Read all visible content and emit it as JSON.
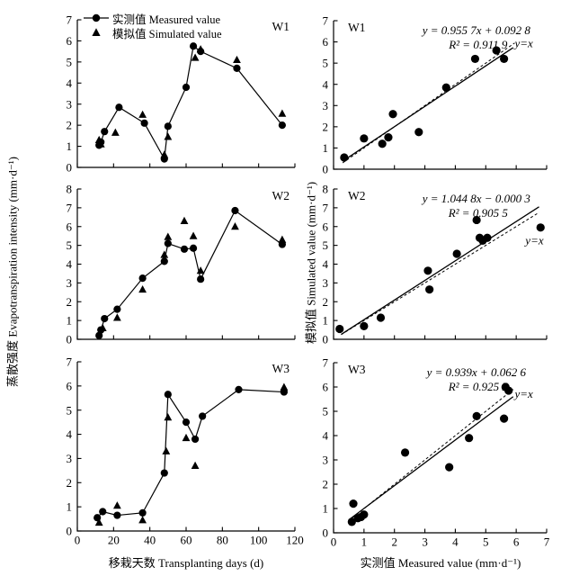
{
  "figure": {
    "background": "#ffffff",
    "ink_color": "#000000",
    "legend": {
      "measured_label": "实测值 Measured value",
      "simulated_label": "模拟值 Simulated value"
    },
    "axis_captions": {
      "left_x": "移栽天数 Transplanting days (d)",
      "left_y": "蒸散强度 Evapotranspiration intensity (mm·d⁻¹)",
      "right_x": "实测值 Measured value (mm·d⁻¹)",
      "right_y": "模拟值 Simulated value (mm·d⁻¹)"
    }
  },
  "chart_data": [
    {
      "panel": "W1",
      "type": "line",
      "xlim": [
        0,
        120
      ],
      "ylim": [
        0,
        7
      ],
      "xticks": [
        0,
        20,
        40,
        60,
        80,
        100,
        120
      ],
      "yticks": [
        0,
        1,
        2,
        3,
        4,
        5,
        6,
        7
      ],
      "show_xtick_labels": false,
      "series": [
        {
          "name": "measured",
          "marker": "circle",
          "connect": true,
          "points": [
            [
              12,
              1.05
            ],
            [
              13,
              1.2
            ],
            [
              15,
              1.7
            ],
            [
              23,
              2.85
            ],
            [
              37,
              2.1
            ],
            [
              48,
              0.4
            ],
            [
              50,
              1.95
            ],
            [
              60,
              3.8
            ],
            [
              64,
              5.75
            ],
            [
              68,
              5.5
            ],
            [
              88,
              4.7
            ],
            [
              113,
              2.0
            ]
          ]
        },
        {
          "name": "simulated",
          "marker": "triangle",
          "connect": false,
          "points": [
            [
              12,
              1.3
            ],
            [
              13,
              1.1
            ],
            [
              21,
              1.65
            ],
            [
              36,
              2.5
            ],
            [
              48,
              0.6
            ],
            [
              50,
              1.45
            ],
            [
              65,
              5.2
            ],
            [
              68,
              5.6
            ],
            [
              88,
              5.1
            ],
            [
              113,
              2.55
            ]
          ]
        }
      ]
    },
    {
      "panel": "W1",
      "type": "scatter",
      "xlim": [
        0,
        7
      ],
      "ylim": [
        0,
        7
      ],
      "xticks": [
        0,
        1,
        2,
        3,
        4,
        5,
        6,
        7
      ],
      "yticks": [
        0,
        1,
        2,
        3,
        4,
        5,
        6,
        7
      ],
      "show_xtick_labels": false,
      "points": [
        [
          0.35,
          0.55
        ],
        [
          1.0,
          1.45
        ],
        [
          1.6,
          1.2
        ],
        [
          1.8,
          1.5
        ],
        [
          1.95,
          2.6
        ],
        [
          2.8,
          1.75
        ],
        [
          3.7,
          3.85
        ],
        [
          4.65,
          5.2
        ],
        [
          5.35,
          5.6
        ],
        [
          5.6,
          5.2
        ]
      ],
      "fit": {
        "slope": 0.9557,
        "intercept": 0.0928,
        "x_range": [
          0.3,
          5.9
        ],
        "equation": "y = 0.955 7x + 0.092 8",
        "r2": "R² = 0.911 9"
      },
      "identity": {
        "label": "y=x",
        "x_range": [
          0.3,
          5.95
        ],
        "label_pos": [
          5.95,
          5.75
        ]
      }
    },
    {
      "panel": "W2",
      "type": "line",
      "xlim": [
        0,
        120
      ],
      "ylim": [
        0,
        8
      ],
      "xticks": [
        0,
        20,
        40,
        60,
        80,
        100,
        120
      ],
      "yticks": [
        0,
        1,
        2,
        3,
        4,
        5,
        6,
        7,
        8
      ],
      "show_xtick_labels": false,
      "series": [
        {
          "name": "measured",
          "marker": "circle",
          "connect": true,
          "points": [
            [
              12,
              0.2
            ],
            [
              13,
              0.5
            ],
            [
              15,
              1.1
            ],
            [
              22,
              1.6
            ],
            [
              36,
              3.25
            ],
            [
              48,
              4.15
            ],
            [
              50,
              5.1
            ],
            [
              59,
              4.8
            ],
            [
              64,
              4.85
            ],
            [
              68,
              3.2
            ],
            [
              87,
              6.85
            ],
            [
              113,
              5.05
            ]
          ]
        },
        {
          "name": "simulated",
          "marker": "triangle",
          "connect": false,
          "points": [
            [
              14,
              0.6
            ],
            [
              22,
              1.15
            ],
            [
              36,
              2.65
            ],
            [
              48,
              4.5
            ],
            [
              50,
              5.45
            ],
            [
              59,
              6.3
            ],
            [
              64,
              5.5
            ],
            [
              68,
              3.65
            ],
            [
              87,
              6.0
            ],
            [
              113,
              5.3
            ]
          ]
        }
      ]
    },
    {
      "panel": "W2",
      "type": "scatter",
      "xlim": [
        0,
        7
      ],
      "ylim": [
        0,
        8
      ],
      "xticks": [
        0,
        1,
        2,
        3,
        4,
        5,
        6,
        7
      ],
      "yticks": [
        0,
        1,
        2,
        3,
        4,
        5,
        6,
        7,
        8
      ],
      "show_xtick_labels": false,
      "points": [
        [
          0.2,
          0.55
        ],
        [
          1.0,
          0.7
        ],
        [
          1.55,
          1.15
        ],
        [
          3.1,
          3.65
        ],
        [
          3.15,
          2.65
        ],
        [
          4.05,
          4.55
        ],
        [
          4.7,
          6.35
        ],
        [
          4.8,
          5.4
        ],
        [
          4.9,
          5.25
        ],
        [
          5.05,
          5.4
        ],
        [
          6.8,
          5.95
        ]
      ],
      "fit": {
        "slope": 1.0448,
        "intercept": -0.0003,
        "x_range": [
          0.25,
          6.75
        ],
        "equation": "y = 1.044 8x − 0.000 3",
        "r2": "R² = 0.905 5"
      },
      "identity": {
        "label": "y=x",
        "x_range": [
          0.25,
          6.75
        ],
        "label_pos": [
          6.3,
          5.05
        ]
      }
    },
    {
      "panel": "W3",
      "type": "line",
      "xlim": [
        0,
        120
      ],
      "ylim": [
        0,
        7
      ],
      "xticks": [
        0,
        20,
        40,
        60,
        80,
        100,
        120
      ],
      "yticks": [
        0,
        1,
        2,
        3,
        4,
        5,
        6,
        7
      ],
      "show_xtick_labels": true,
      "series": [
        {
          "name": "measured",
          "marker": "circle",
          "connect": true,
          "points": [
            [
              11,
              0.55
            ],
            [
              14,
              0.8
            ],
            [
              22,
              0.65
            ],
            [
              36,
              0.75
            ],
            [
              48,
              2.4
            ],
            [
              50,
              5.65
            ],
            [
              60,
              4.5
            ],
            [
              65,
              3.8
            ],
            [
              69,
              4.75
            ],
            [
              89,
              5.85
            ],
            [
              114,
              5.75
            ]
          ]
        },
        {
          "name": "simulated",
          "marker": "triangle",
          "connect": false,
          "points": [
            [
              12,
              0.35
            ],
            [
              22,
              1.05
            ],
            [
              36,
              0.45
            ],
            [
              49,
              3.3
            ],
            [
              50,
              4.7
            ],
            [
              60,
              3.85
            ],
            [
              65,
              2.7
            ],
            [
              114,
              5.95
            ]
          ]
        }
      ]
    },
    {
      "panel": "W3",
      "type": "scatter",
      "xlim": [
        0,
        7
      ],
      "ylim": [
        0,
        7
      ],
      "xticks": [
        0,
        1,
        2,
        3,
        4,
        5,
        6,
        7
      ],
      "yticks": [
        0,
        1,
        2,
        3,
        4,
        5,
        6,
        7
      ],
      "show_xtick_labels": true,
      "points": [
        [
          0.6,
          0.45
        ],
        [
          0.65,
          1.2
        ],
        [
          0.8,
          0.6
        ],
        [
          0.9,
          0.65
        ],
        [
          1.0,
          0.75
        ],
        [
          2.35,
          3.3
        ],
        [
          3.8,
          2.7
        ],
        [
          4.45,
          3.9
        ],
        [
          4.7,
          4.8
        ],
        [
          5.6,
          4.7
        ],
        [
          5.65,
          6.0
        ],
        [
          5.75,
          5.85
        ]
      ],
      "fit": {
        "slope": 0.939,
        "intercept": 0.0626,
        "x_range": [
          0.5,
          5.9
        ],
        "equation": "y = 0.939x + 0.062 6",
        "r2": "R² = 0.925 5"
      },
      "identity": {
        "label": "y=x",
        "x_range": [
          0.5,
          5.95
        ],
        "label_pos": [
          5.95,
          5.55
        ]
      }
    }
  ]
}
